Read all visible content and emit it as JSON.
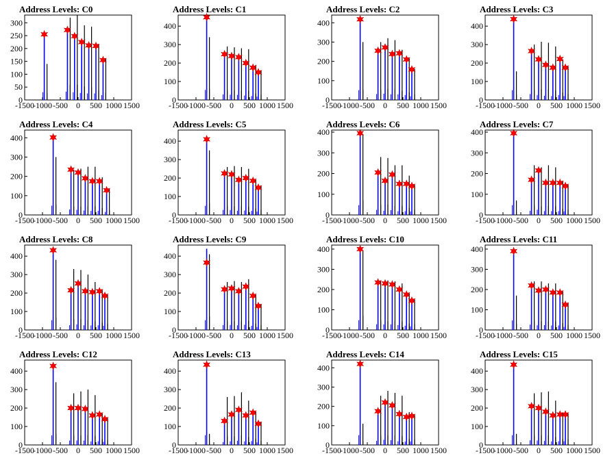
{
  "chart_data": [
    {
      "type": "bar",
      "title": "Address Levels: C0",
      "xlim": [
        -1500,
        1500
      ],
      "ylim": [
        0,
        330
      ],
      "yticks": [
        0,
        50,
        100,
        150,
        200,
        250,
        300
      ],
      "xticks": [
        -1500,
        -1000,
        -500,
        0,
        500,
        1000,
        1500
      ],
      "peaks": [
        {
          "x": -950,
          "blue": 250,
          "black": 140,
          "star": 255
        },
        {
          "x": -300,
          "blue": 270,
          "black": 320,
          "star": 272
        },
        {
          "x": -100,
          "blue": 250,
          "black": 330,
          "star": 248
        },
        {
          "x": 100,
          "blue": 225,
          "black": 290,
          "star": 225
        },
        {
          "x": 300,
          "blue": 210,
          "black": 285,
          "star": 212
        },
        {
          "x": 500,
          "blue": 210,
          "black": 215,
          "star": 210
        },
        {
          "x": 700,
          "blue": 155,
          "black": 160,
          "star": 155
        }
      ]
    },
    {
      "type": "bar",
      "title": "Address Levels: C1",
      "xlim": [
        -1500,
        1500
      ],
      "ylim": [
        0,
        460
      ],
      "yticks": [
        0,
        100,
        200,
        300,
        400
      ],
      "xticks": [
        -1500,
        -1000,
        -500,
        0,
        500,
        1000,
        1500
      ],
      "peaks": [
        {
          "x": -700,
          "blue": 450,
          "black": 340,
          "star": 448
        },
        {
          "x": -200,
          "blue": 250,
          "black": 290,
          "star": 248
        },
        {
          "x": 0,
          "blue": 240,
          "black": 285,
          "star": 238
        },
        {
          "x": 200,
          "blue": 230,
          "black": 280,
          "star": 232
        },
        {
          "x": 400,
          "blue": 200,
          "black": 275,
          "star": 200
        },
        {
          "x": 600,
          "blue": 175,
          "black": 190,
          "star": 175
        },
        {
          "x": 750,
          "blue": 150,
          "black": 160,
          "star": 150
        }
      ]
    },
    {
      "type": "bar",
      "title": "Address Levels: C2",
      "xlim": [
        -1500,
        1500
      ],
      "ylim": [
        0,
        440
      ],
      "yticks": [
        0,
        100,
        200,
        300,
        400
      ],
      "xticks": [
        -1500,
        -1000,
        -500,
        0,
        500,
        1000,
        1500
      ],
      "peaks": [
        {
          "x": -700,
          "blue": 420,
          "black": 300,
          "star": 418
        },
        {
          "x": -200,
          "blue": 255,
          "black": 300,
          "star": 255
        },
        {
          "x": 0,
          "blue": 270,
          "black": 320,
          "star": 272
        },
        {
          "x": 200,
          "blue": 240,
          "black": 310,
          "star": 238
        },
        {
          "x": 400,
          "blue": 240,
          "black": 260,
          "star": 242
        },
        {
          "x": 600,
          "blue": 210,
          "black": 215,
          "star": 210
        },
        {
          "x": 750,
          "blue": 155,
          "black": 160,
          "star": 158
        }
      ]
    },
    {
      "type": "bar",
      "title": "Address Levels: C3",
      "xlim": [
        -1500,
        1500
      ],
      "ylim": [
        0,
        460
      ],
      "yticks": [
        0,
        100,
        200,
        300,
        400
      ],
      "xticks": [
        -1500,
        -1000,
        -500,
        0,
        500,
        1000,
        1500
      ],
      "peaks": [
        {
          "x": -700,
          "blue": 440,
          "black": 155,
          "star": 438
        },
        {
          "x": -200,
          "blue": 265,
          "black": 300,
          "star": 265
        },
        {
          "x": 0,
          "blue": 220,
          "black": 315,
          "star": 220
        },
        {
          "x": 200,
          "blue": 190,
          "black": 310,
          "star": 190
        },
        {
          "x": 400,
          "blue": 175,
          "black": 290,
          "star": 175
        },
        {
          "x": 600,
          "blue": 220,
          "black": 220,
          "star": 222
        },
        {
          "x": 750,
          "blue": 175,
          "black": 180,
          "star": 175
        }
      ]
    },
    {
      "type": "bar",
      "title": "Address Levels: C4",
      "xlim": [
        -1500,
        1500
      ],
      "ylim": [
        0,
        440
      ],
      "yticks": [
        0,
        100,
        200,
        300,
        400
      ],
      "xticks": [
        -1500,
        -1000,
        -500,
        0,
        500,
        1000,
        1500
      ],
      "peaks": [
        {
          "x": -700,
          "blue": 400,
          "black": 300,
          "star": 402
        },
        {
          "x": -200,
          "blue": 235,
          "black": 235,
          "star": 235
        },
        {
          "x": 0,
          "blue": 220,
          "black": 240,
          "star": 220
        },
        {
          "x": 200,
          "blue": 190,
          "black": 250,
          "star": 190
        },
        {
          "x": 400,
          "blue": 175,
          "black": 250,
          "star": 175
        },
        {
          "x": 600,
          "blue": 175,
          "black": 195,
          "star": 175
        },
        {
          "x": 800,
          "blue": 130,
          "black": 135,
          "star": 128
        }
      ]
    },
    {
      "type": "bar",
      "title": "Address Levels: C5",
      "xlim": [
        -1500,
        1500
      ],
      "ylim": [
        0,
        460
      ],
      "yticks": [
        0,
        100,
        200,
        300,
        400
      ],
      "xticks": [
        -1500,
        -1000,
        -500,
        0,
        500,
        1000,
        1500
      ],
      "peaks": [
        {
          "x": -700,
          "blue": 410,
          "black": 350,
          "star": 410
        },
        {
          "x": -200,
          "blue": 225,
          "black": 260,
          "star": 225
        },
        {
          "x": 0,
          "blue": 220,
          "black": 265,
          "star": 220
        },
        {
          "x": 200,
          "blue": 190,
          "black": 260,
          "star": 190
        },
        {
          "x": 400,
          "blue": 200,
          "black": 250,
          "star": 200
        },
        {
          "x": 600,
          "blue": 185,
          "black": 190,
          "star": 185
        },
        {
          "x": 750,
          "blue": 150,
          "black": 160,
          "star": 148
        }
      ]
    },
    {
      "type": "bar",
      "title": "Address Levels: C6",
      "xlim": [
        -1500,
        1500
      ],
      "ylim": [
        0,
        410
      ],
      "yticks": [
        0,
        100,
        200,
        300,
        400
      ],
      "xticks": [
        -1500,
        -1000,
        -500,
        0,
        500,
        1000,
        1500
      ],
      "peaks": [
        {
          "x": -700,
          "blue": 395,
          "black": 390,
          "star": 395
        },
        {
          "x": -200,
          "blue": 205,
          "black": 280,
          "star": 205
        },
        {
          "x": 0,
          "blue": 165,
          "black": 275,
          "star": 165
        },
        {
          "x": 200,
          "blue": 195,
          "black": 240,
          "star": 195
        },
        {
          "x": 400,
          "blue": 150,
          "black": 240,
          "star": 150
        },
        {
          "x": 600,
          "blue": 150,
          "black": 190,
          "star": 150
        },
        {
          "x": 750,
          "blue": 140,
          "black": 145,
          "star": 140
        }
      ]
    },
    {
      "type": "bar",
      "title": "Address Levels: C7",
      "xlim": [
        -1500,
        1500
      ],
      "ylim": [
        0,
        410
      ],
      "yticks": [
        0,
        100,
        200,
        300,
        400
      ],
      "xticks": [
        -1500,
        -1000,
        -500,
        0,
        500,
        1000,
        1500
      ],
      "peaks": [
        {
          "x": -700,
          "blue": 395,
          "black": 70,
          "star": 395
        },
        {
          "x": -200,
          "blue": 170,
          "black": 240,
          "star": 170
        },
        {
          "x": 0,
          "blue": 215,
          "black": 230,
          "star": 215
        },
        {
          "x": 200,
          "blue": 155,
          "black": 240,
          "star": 155
        },
        {
          "x": 400,
          "blue": 155,
          "black": 230,
          "star": 155
        },
        {
          "x": 600,
          "blue": 155,
          "black": 165,
          "star": 155
        },
        {
          "x": 750,
          "blue": 140,
          "black": 145,
          "star": 140
        }
      ]
    },
    {
      "type": "bar",
      "title": "Address Levels: C8",
      "xlim": [
        -1500,
        1500
      ],
      "ylim": [
        0,
        460
      ],
      "yticks": [
        0,
        100,
        200,
        300,
        400
      ],
      "xticks": [
        -1500,
        -1000,
        -500,
        0,
        500,
        1000,
        1500
      ],
      "peaks": [
        {
          "x": -700,
          "blue": 440,
          "black": 380,
          "star": 432
        },
        {
          "x": -200,
          "blue": 215,
          "black": 330,
          "star": 215
        },
        {
          "x": 0,
          "blue": 250,
          "black": 325,
          "star": 252
        },
        {
          "x": 200,
          "blue": 210,
          "black": 300,
          "star": 210
        },
        {
          "x": 400,
          "blue": 205,
          "black": 260,
          "star": 205
        },
        {
          "x": 600,
          "blue": 210,
          "black": 215,
          "star": 210
        },
        {
          "x": 750,
          "blue": 185,
          "black": 190,
          "star": 185
        }
      ]
    },
    {
      "type": "bar",
      "title": "Address Levels: C9",
      "xlim": [
        -1500,
        1500
      ],
      "ylim": [
        0,
        460
      ],
      "yticks": [
        0,
        100,
        200,
        300,
        400
      ],
      "xticks": [
        -1500,
        -1000,
        -500,
        0,
        500,
        1000,
        1500
      ],
      "peaks": [
        {
          "x": -700,
          "blue": 440,
          "black": 410,
          "star": 365
        },
        {
          "x": -200,
          "blue": 220,
          "black": 260,
          "star": 220
        },
        {
          "x": 0,
          "blue": 225,
          "black": 265,
          "star": 225
        },
        {
          "x": 200,
          "blue": 210,
          "black": 260,
          "star": 210
        },
        {
          "x": 400,
          "blue": 235,
          "black": 275,
          "star": 235
        },
        {
          "x": 600,
          "blue": 185,
          "black": 190,
          "star": 185
        },
        {
          "x": 750,
          "blue": 130,
          "black": 140,
          "star": 130
        }
      ]
    },
    {
      "type": "bar",
      "title": "Address Levels: C10",
      "xlim": [
        -1500,
        1500
      ],
      "ylim": [
        0,
        420
      ],
      "yticks": [
        0,
        100,
        200,
        300,
        400
      ],
      "xticks": [
        -1500,
        -1000,
        -500,
        0,
        500,
        1000,
        1500
      ],
      "peaks": [
        {
          "x": -700,
          "blue": 400,
          "black": 390,
          "star": 400
        },
        {
          "x": -200,
          "blue": 235,
          "black": 245,
          "star": 235
        },
        {
          "x": 0,
          "blue": 230,
          "black": 245,
          "star": 230
        },
        {
          "x": 200,
          "blue": 225,
          "black": 240,
          "star": 225
        },
        {
          "x": 400,
          "blue": 200,
          "black": 230,
          "star": 200
        },
        {
          "x": 600,
          "blue": 175,
          "black": 180,
          "star": 175
        },
        {
          "x": 750,
          "blue": 145,
          "black": 150,
          "star": 145
        }
      ]
    },
    {
      "type": "bar",
      "title": "Address Levels: C11",
      "xlim": [
        -1500,
        1500
      ],
      "ylim": [
        0,
        420
      ],
      "yticks": [
        0,
        100,
        200,
        300,
        400
      ],
      "xticks": [
        -1500,
        -1000,
        -500,
        0,
        500,
        1000,
        1500
      ],
      "peaks": [
        {
          "x": -700,
          "blue": 390,
          "black": 170,
          "star": 390
        },
        {
          "x": -200,
          "blue": 220,
          "black": 240,
          "star": 220
        },
        {
          "x": 0,
          "blue": 195,
          "black": 240,
          "star": 195
        },
        {
          "x": 200,
          "blue": 200,
          "black": 230,
          "star": 200
        },
        {
          "x": 400,
          "blue": 185,
          "black": 230,
          "star": 185
        },
        {
          "x": 600,
          "blue": 185,
          "black": 190,
          "star": 185
        },
        {
          "x": 750,
          "blue": 125,
          "black": 135,
          "star": 125
        }
      ]
    },
    {
      "type": "bar",
      "title": "Address Levels: C12",
      "xlim": [
        -1500,
        1500
      ],
      "ylim": [
        0,
        460
      ],
      "yticks": [
        0,
        100,
        200,
        300,
        400
      ],
      "xticks": [
        -1500,
        -1000,
        -500,
        0,
        500,
        1000,
        1500
      ],
      "peaks": [
        {
          "x": -700,
          "blue": 430,
          "black": 340,
          "star": 428
        },
        {
          "x": -200,
          "blue": 200,
          "black": 280,
          "star": 200
        },
        {
          "x": 0,
          "blue": 200,
          "black": 290,
          "star": 200
        },
        {
          "x": 200,
          "blue": 195,
          "black": 300,
          "star": 195
        },
        {
          "x": 400,
          "blue": 160,
          "black": 270,
          "star": 160
        },
        {
          "x": 600,
          "blue": 165,
          "black": 170,
          "star": 165
        },
        {
          "x": 750,
          "blue": 140,
          "black": 145,
          "star": 140
        }
      ]
    },
    {
      "type": "bar",
      "title": "Address Levels: C13",
      "xlim": [
        -1500,
        1500
      ],
      "ylim": [
        0,
        460
      ],
      "yticks": [
        0,
        100,
        200,
        300,
        400
      ],
      "xticks": [
        -1500,
        -1000,
        -500,
        0,
        500,
        1000,
        1500
      ],
      "peaks": [
        {
          "x": -700,
          "blue": 440,
          "black": 60,
          "star": 435
        },
        {
          "x": -200,
          "blue": 130,
          "black": 260,
          "star": 130
        },
        {
          "x": 0,
          "blue": 165,
          "black": 265,
          "star": 165
        },
        {
          "x": 200,
          "blue": 190,
          "black": 285,
          "star": 190
        },
        {
          "x": 400,
          "blue": 160,
          "black": 240,
          "star": 160
        },
        {
          "x": 600,
          "blue": 175,
          "black": 180,
          "star": 175
        },
        {
          "x": 750,
          "blue": 115,
          "black": 125,
          "star": 115
        }
      ]
    },
    {
      "type": "bar",
      "title": "Address Levels: C14",
      "xlim": [
        -1500,
        1500
      ],
      "ylim": [
        0,
        440
      ],
      "yticks": [
        0,
        100,
        200,
        300,
        400
      ],
      "xticks": [
        -1500,
        -1000,
        -500,
        0,
        500,
        1000,
        1500
      ],
      "peaks": [
        {
          "x": -700,
          "blue": 420,
          "black": 110,
          "star": 420
        },
        {
          "x": -200,
          "blue": 175,
          "black": 255,
          "star": 175
        },
        {
          "x": 0,
          "blue": 220,
          "black": 280,
          "star": 220
        },
        {
          "x": 200,
          "blue": 205,
          "black": 270,
          "star": 205
        },
        {
          "x": 400,
          "blue": 160,
          "black": 255,
          "star": 160
        },
        {
          "x": 600,
          "blue": 145,
          "black": 170,
          "star": 145
        },
        {
          "x": 750,
          "blue": 150,
          "black": 155,
          "star": 150
        }
      ]
    },
    {
      "type": "bar",
      "title": "Address Levels: C15",
      "xlim": [
        -1500,
        1500
      ],
      "ylim": [
        0,
        460
      ],
      "yticks": [
        0,
        100,
        200,
        300,
        400
      ],
      "xticks": [
        -1500,
        -1000,
        -500,
        0,
        500,
        1000,
        1500
      ],
      "peaks": [
        {
          "x": -700,
          "blue": 440,
          "black": 60,
          "star": 435
        },
        {
          "x": -200,
          "blue": 210,
          "black": 280,
          "star": 210
        },
        {
          "x": 0,
          "blue": 200,
          "black": 285,
          "star": 200
        },
        {
          "x": 200,
          "blue": 180,
          "black": 290,
          "star": 180
        },
        {
          "x": 400,
          "blue": 160,
          "black": 240,
          "star": 160
        },
        {
          "x": 600,
          "blue": 165,
          "black": 170,
          "star": 165
        },
        {
          "x": 750,
          "blue": 165,
          "black": 170,
          "star": 165
        }
      ]
    }
  ],
  "colors": {
    "primary_series": "#0000ff",
    "secondary_series": "#000000",
    "marker": "#ff0000",
    "axis": "#000000"
  },
  "marker_icon": "red-star-marker"
}
